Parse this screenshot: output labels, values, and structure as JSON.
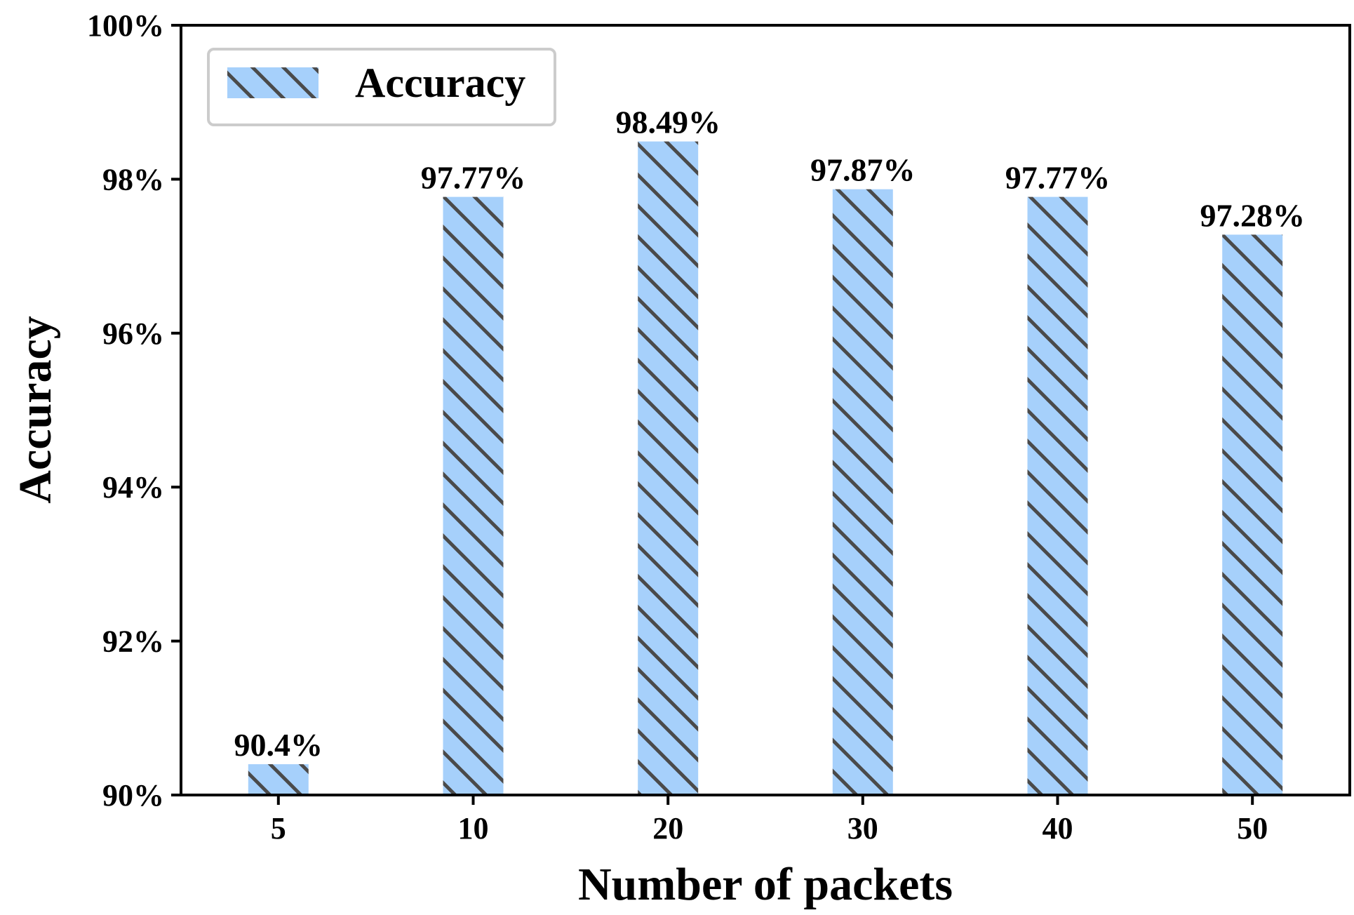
{
  "chart_data": {
    "type": "bar",
    "categories": [
      "5",
      "10",
      "20",
      "30",
      "40",
      "50"
    ],
    "series": [
      {
        "name": "Accuracy",
        "values": [
          90.4,
          97.77,
          98.49,
          97.87,
          97.77,
          97.28
        ],
        "labels": [
          "90.4%",
          "97.77%",
          "98.49%",
          "97.87%",
          "97.77%",
          "97.28%"
        ]
      }
    ],
    "title": "",
    "xlabel": "Number of packets",
    "ylabel": "Accuracy",
    "ylim": [
      90,
      100
    ],
    "yticks": [
      90,
      92,
      94,
      96,
      98,
      100
    ],
    "ytick_labels": [
      "90%",
      "92%",
      "94%",
      "96%",
      "98%",
      "100%"
    ],
    "grid": false,
    "legend_position": "top-left",
    "bar_color": "#a6d0fb",
    "hatch_color": "#4a4a4a",
    "hatch": "backslash"
  }
}
